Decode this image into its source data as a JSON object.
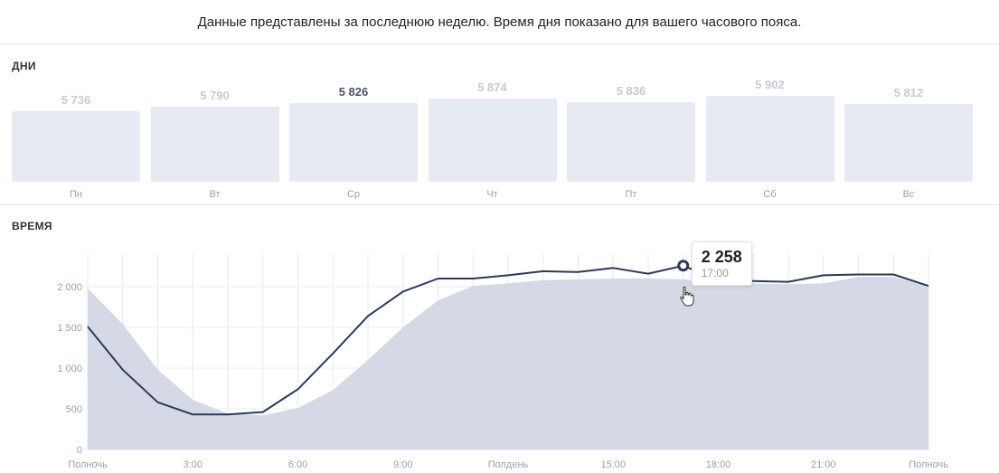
{
  "header": {
    "note": "Данные представлены за последнюю неделю. Время дня показано для вашего часового пояса."
  },
  "days_section": {
    "title": "ДНИ",
    "active_index": 2,
    "days": [
      {
        "label": "Пн",
        "value": "5 736"
      },
      {
        "label": "Вт",
        "value": "5 790"
      },
      {
        "label": "Ср",
        "value": "5 826"
      },
      {
        "label": "Чт",
        "value": "5 874"
      },
      {
        "label": "Пт",
        "value": "5 836"
      },
      {
        "label": "Сб",
        "value": "5 902"
      },
      {
        "label": "Вс",
        "value": "5 812"
      }
    ]
  },
  "time_section": {
    "title": "ВРЕМЯ"
  },
  "tooltip": {
    "value": "2 258",
    "time": "17:00"
  },
  "colors": {
    "line": "#2c3a58",
    "area": "#d4d9e5",
    "day_bar": "#e6eaf3",
    "day_value_active": "#4a5568",
    "day_value": "#c5cbd6"
  },
  "chart_data": [
    {
      "type": "bar",
      "categories": [
        "Пн",
        "Вт",
        "Ср",
        "Чт",
        "Пт",
        "Сб",
        "Вс"
      ],
      "values": [
        5736,
        5790,
        5826,
        5874,
        5836,
        5902,
        5812
      ]
    },
    {
      "type": "line",
      "x": [
        0,
        1,
        2,
        3,
        4,
        5,
        6,
        7,
        8,
        9,
        10,
        11,
        12,
        13,
        14,
        15,
        16,
        17,
        18,
        19,
        20,
        21,
        22,
        23,
        24
      ],
      "series": [
        {
          "kind": "line",
          "values": [
            1510,
            980,
            580,
            430,
            430,
            460,
            740,
            1180,
            1640,
            1940,
            2100,
            2100,
            2140,
            2190,
            2180,
            2230,
            2160,
            2258,
            2080,
            2070,
            2060,
            2140,
            2150,
            2150,
            2010
          ]
        },
        {
          "kind": "area",
          "values": [
            1980,
            1540,
            980,
            610,
            440,
            420,
            510,
            730,
            1100,
            1500,
            1830,
            2010,
            2040,
            2080,
            2090,
            2100,
            2100,
            2090,
            2060,
            2040,
            2030,
            2040,
            2120,
            2120,
            2010
          ]
        }
      ],
      "x_tick_labels": [
        {
          "x": 0,
          "label": "Полночь"
        },
        {
          "x": 3,
          "label": "3:00"
        },
        {
          "x": 6,
          "label": "6:00"
        },
        {
          "x": 9,
          "label": "9:00"
        },
        {
          "x": 12,
          "label": "Полдень"
        },
        {
          "x": 15,
          "label": "15:00"
        },
        {
          "x": 18,
          "label": "18:00"
        },
        {
          "x": 21,
          "label": "21:00"
        },
        {
          "x": 24,
          "label": "Полночь"
        }
      ],
      "y_ticks": [
        0,
        500,
        1000,
        1500,
        2000
      ],
      "y_tick_labels": [
        "0",
        "500",
        "1 000",
        "1 500",
        "2 000"
      ],
      "ylim": [
        0,
        2400
      ],
      "xlim": [
        0,
        24
      ],
      "highlight": {
        "x": 17,
        "y": 2258
      },
      "grid": true
    }
  ]
}
